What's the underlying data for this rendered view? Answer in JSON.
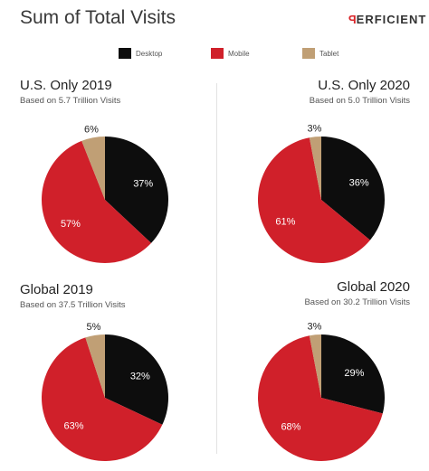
{
  "header": {
    "title": "Sum of Total Visits",
    "logo_text": "ERFICIENT",
    "logo_mark": "P"
  },
  "legend": [
    {
      "label": "Desktop",
      "color": "#0d0d0d"
    },
    {
      "label": "Mobile",
      "color": "#d0202a"
    },
    {
      "label": "Tablet",
      "color": "#c09f75"
    }
  ],
  "chart_data": [
    {
      "type": "pie",
      "title": "U.S. Only 2019",
      "subtitle": "Based on 5.7 Trillion Visits",
      "categories": [
        "Desktop",
        "Mobile",
        "Tablet"
      ],
      "values": [
        37,
        57,
        6
      ],
      "labels": [
        "37%",
        "57%",
        "6%"
      ],
      "colors": [
        "#0d0d0d",
        "#d0202a",
        "#c09f75"
      ]
    },
    {
      "type": "pie",
      "title": "U.S. Only 2020",
      "subtitle": "Based on 5.0 Trillion Visits",
      "categories": [
        "Desktop",
        "Mobile",
        "Tablet"
      ],
      "values": [
        36,
        61,
        3
      ],
      "labels": [
        "36%",
        "61%",
        "3%"
      ],
      "colors": [
        "#0d0d0d",
        "#d0202a",
        "#c09f75"
      ]
    },
    {
      "type": "pie",
      "title": "Global 2019",
      "subtitle": "Based on 37.5 Trillion Visits",
      "categories": [
        "Desktop",
        "Mobile",
        "Tablet"
      ],
      "values": [
        32,
        63,
        5
      ],
      "labels": [
        "32%",
        "63%",
        "5%"
      ],
      "colors": [
        "#0d0d0d",
        "#d0202a",
        "#c09f75"
      ]
    },
    {
      "type": "pie",
      "title": "Global 2020",
      "subtitle": "Based on 30.2 Trillion Visits",
      "categories": [
        "Desktop",
        "Mobile",
        "Tablet"
      ],
      "values": [
        29,
        68,
        3
      ],
      "labels": [
        "29%",
        "68%",
        "3%"
      ],
      "colors": [
        "#0d0d0d",
        "#d0202a",
        "#c09f75"
      ]
    }
  ]
}
